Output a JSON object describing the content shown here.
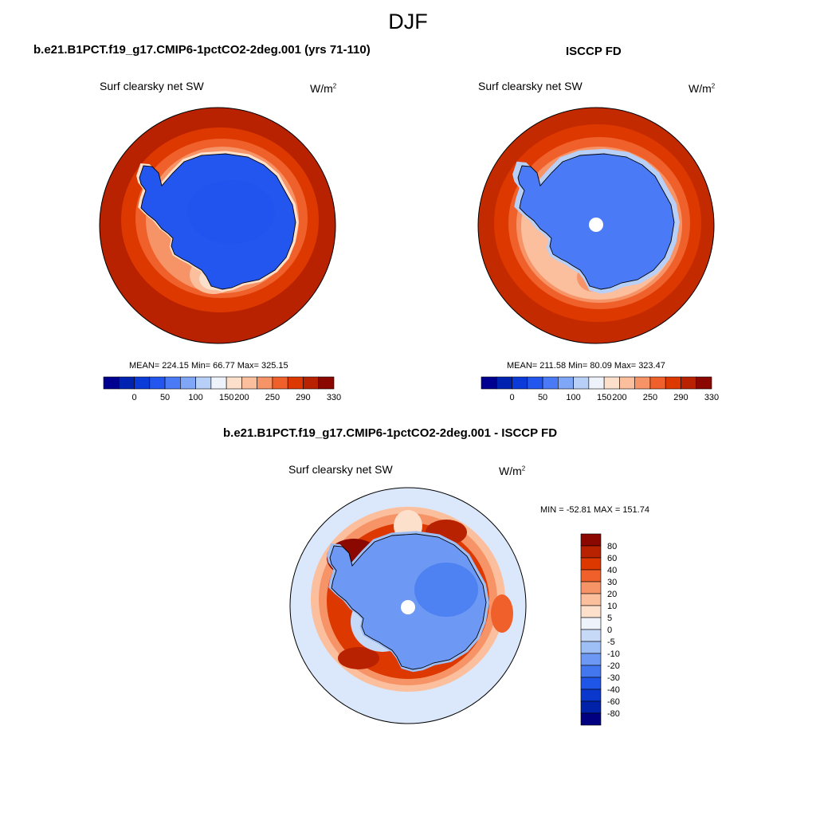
{
  "figure": {
    "title": "DJF"
  },
  "panels": [
    {
      "case_title": "b.e21.B1PCT.f19_g17.CMIP6-1pctCO2-2deg.001 (yrs 71-110)",
      "variable": "Surf clearsky net SW",
      "units_base": "W/m",
      "units_exp": "2",
      "stats": "MEAN= 224.15  Min=  66.77  Max= 325.15",
      "colorbar_ticks": [
        "0",
        "50",
        "100",
        "150",
        "200",
        "250",
        "290",
        "330"
      ]
    },
    {
      "case_title": "ISCCP FD",
      "variable": "Surf clearsky net SW",
      "units_base": "W/m",
      "units_exp": "2",
      "stats": "MEAN= 211.58  Min=  80.09  Max= 323.47",
      "colorbar_ticks": [
        "0",
        "50",
        "100",
        "150",
        "200",
        "250",
        "290",
        "330"
      ]
    }
  ],
  "difference": {
    "case_title": "b.e21.B1PCT.f19_g17.CMIP6-1pctCO2-2deg.001 - ISCCP FD",
    "variable": "Surf clearsky net SW",
    "units_base": "W/m",
    "units_exp": "2",
    "stats": "MIN = -52.81 MAX = 151.74",
    "colorbar_labels": [
      "80",
      "60",
      "40",
      "30",
      "20",
      "10",
      "5",
      "0",
      "-5",
      "-10",
      "-20",
      "-30",
      "-40",
      "-60",
      "-80"
    ]
  },
  "colors": {
    "abs_scale": [
      "#000090",
      "#0022b0",
      "#0a3ad8",
      "#2356ee",
      "#4a7af5",
      "#7fa6f7",
      "#b8d0f8",
      "#eef3fb",
      "#fde0cc",
      "#fbbf9e",
      "#f69468",
      "#f0602a",
      "#dd3800",
      "#b82200",
      "#8a0800"
    ],
    "diff_scale": [
      "#8a0800",
      "#b82200",
      "#dd3800",
      "#f0602a",
      "#f69468",
      "#fbbf9e",
      "#fde0cc",
      "#eef3fb",
      "#c6daf8",
      "#9ebef6",
      "#6d98f3",
      "#4277ef",
      "#2056e8",
      "#0a38cc",
      "#0022a8",
      "#000080"
    ]
  }
}
